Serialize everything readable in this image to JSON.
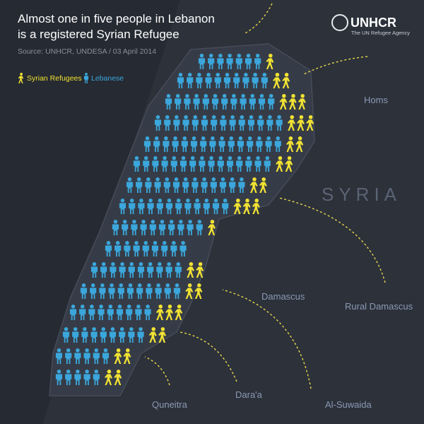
{
  "header": {
    "title": [
      "Almost one in five people in Lebanon",
      "is a registered Syrian Refugee"
    ],
    "source": "Source: UNHCR, UNDESA / 03 April 2014"
  },
  "logo": {
    "name": "UNHCR",
    "tagline": "The UN Refugee Agency"
  },
  "legend": [
    {
      "label": "Syrian Refugees",
      "color": "#f2e233"
    },
    {
      "label": "Lebanese",
      "color": "#3ba7dc"
    }
  ],
  "places": {
    "homs": "Homs",
    "country": "SYRIA",
    "damascus": "Damascus",
    "rural_damascus": "Rural Damascus",
    "daraa": "Dara'a",
    "suwaida": "Al-Suwaida",
    "quneitra": "Quneitra"
  }
}
